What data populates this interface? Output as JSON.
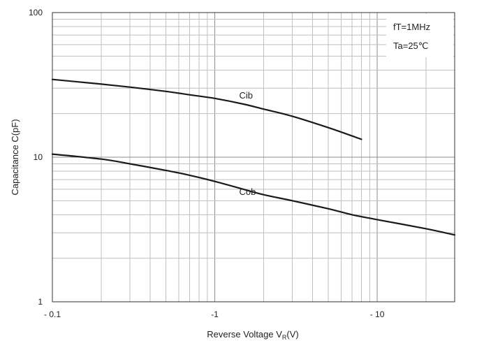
{
  "chart_data": {
    "type": "line",
    "xlabel": "Reverse Voltage  V",
    "xlabel_sub": "R",
    "xlabel_suffix": "(V)",
    "ylabel": "Capacitance  C(pF)",
    "x_scale": "log",
    "y_scale": "log",
    "xlim": [
      0.1,
      30
    ],
    "ylim": [
      1,
      100
    ],
    "x_ticks": [
      {
        "value": 0.1,
        "label": "- 0.1"
      },
      {
        "value": 1,
        "label": "-1"
      },
      {
        "value": 10,
        "label": "- 10"
      }
    ],
    "y_ticks": [
      {
        "value": 1,
        "label": "1"
      },
      {
        "value": 10,
        "label": "10"
      },
      {
        "value": 100,
        "label": "100"
      }
    ],
    "grid": true,
    "annotations": [
      "fT=1MHz",
      "Ta=25℃"
    ],
    "series": [
      {
        "name": "Cib",
        "x": [
          0.1,
          0.2,
          0.3,
          0.5,
          0.7,
          1,
          1.5,
          2,
          3,
          5,
          8
        ],
        "y": [
          34.5,
          32,
          30.5,
          28.5,
          27,
          25.5,
          23.3,
          21.5,
          19.2,
          16,
          13.3
        ]
      },
      {
        "name": "Cob",
        "x": [
          0.1,
          0.2,
          0.3,
          0.5,
          0.7,
          1,
          1.5,
          2,
          3,
          5,
          7,
          10,
          20,
          30
        ],
        "y": [
          10.5,
          9.7,
          9.0,
          8.1,
          7.5,
          6.8,
          6.0,
          5.5,
          5.0,
          4.4,
          4.0,
          3.7,
          3.2,
          2.9
        ]
      }
    ]
  }
}
